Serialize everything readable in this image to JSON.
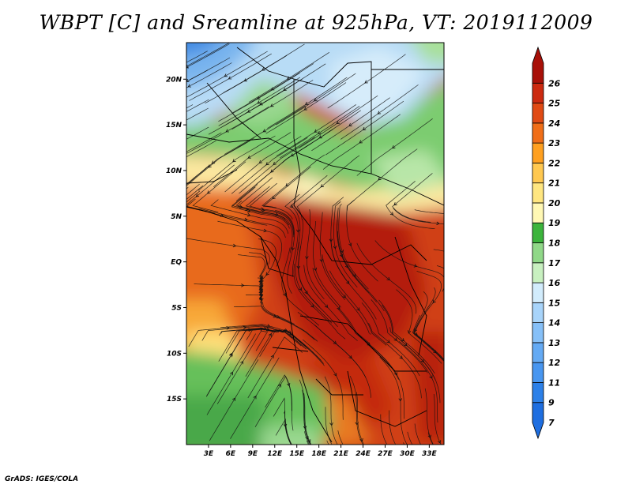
{
  "title": "WBPT [C] and Sreamline at 925hPa, VT: 2019112009",
  "footer": "GrADS: IGES/COLA",
  "chart_data": {
    "type": "heatmap",
    "title": "WBPT [C] and Sreamline at 925hPa, VT: 2019112009",
    "variable": "Wet-bulb potential temperature",
    "units": "C",
    "level": "925hPa",
    "valid_time": "2019112009",
    "overlay": "streamlines",
    "x_axis": {
      "range": [
        0,
        35
      ],
      "ticks": [
        3,
        6,
        9,
        12,
        15,
        18,
        21,
        24,
        27,
        30,
        33
      ],
      "tick_labels": [
        "3E",
        "6E",
        "9E",
        "12E",
        "15E",
        "18E",
        "21E",
        "24E",
        "27E",
        "30E",
        "33E"
      ]
    },
    "y_axis": {
      "range": [
        -20,
        24
      ],
      "ticks": [
        20,
        15,
        10,
        5,
        0,
        -5,
        -10,
        -15
      ],
      "tick_labels": [
        "20N",
        "15N",
        "10N",
        "5N",
        "EQ",
        "5S",
        "10S",
        "15S"
      ]
    },
    "colorbar": {
      "levels": [
        7,
        9,
        11,
        12,
        13,
        14,
        15,
        16,
        17,
        18,
        19,
        20,
        21,
        22,
        23,
        24,
        25,
        26
      ],
      "labels": [
        "7",
        "9",
        "11",
        "12",
        "13",
        "14",
        "15",
        "16",
        "17",
        "18",
        "19",
        "20",
        "21",
        "22",
        "23",
        "24",
        "25",
        "26"
      ],
      "colors": [
        "#1e6ee0",
        "#2c80e8",
        "#4896f0",
        "#64aaf4",
        "#86c0f8",
        "#a8d4fa",
        "#d2ecfc",
        "#c8f0c0",
        "#90d888",
        "#3cb43c",
        "#fff8b4",
        "#ffe680",
        "#ffc850",
        "#ffa020",
        "#f06e18",
        "#e04a14",
        "#cc2a10",
        "#a81008"
      ],
      "extend": "both",
      "orientation": "vertical",
      "position": "right"
    },
    "grid": false,
    "map_boundaries": true
  }
}
